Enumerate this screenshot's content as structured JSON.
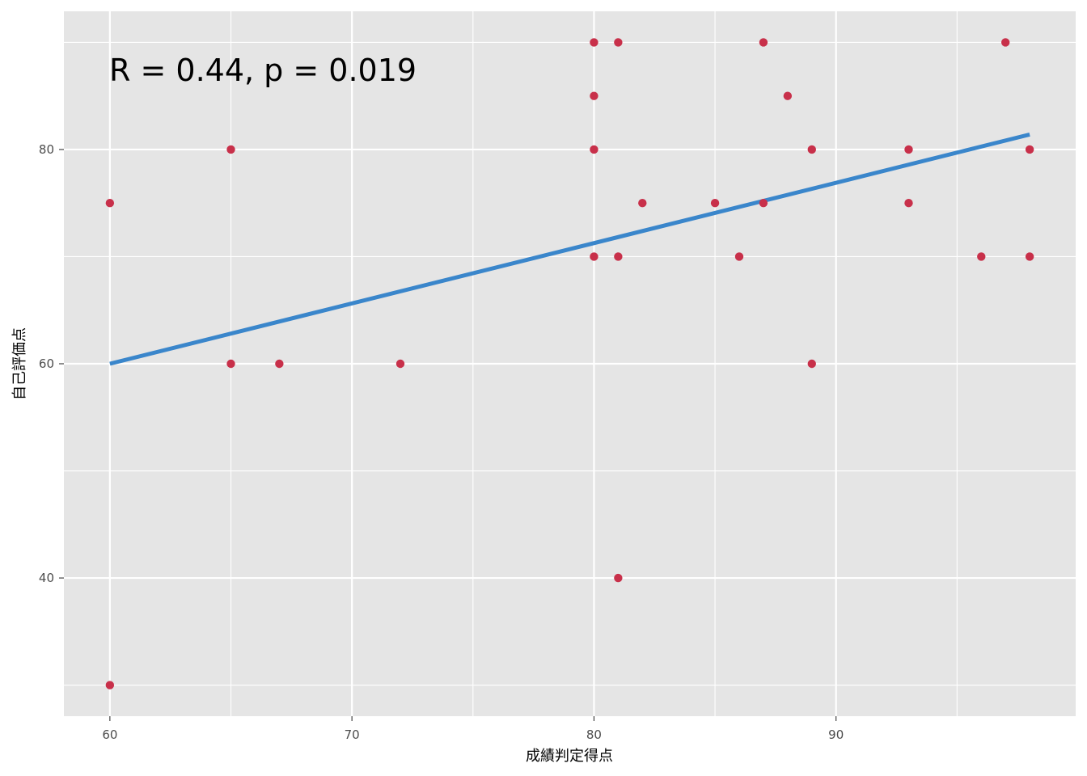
{
  "chart_data": {
    "type": "scatter",
    "title": "",
    "xlabel": "成績判定得点",
    "ylabel": "自己評価点",
    "xlim": [
      58.1,
      99.9
    ],
    "ylim": [
      27.1,
      92.9
    ],
    "x_major_ticks": [
      60,
      70,
      80,
      90
    ],
    "x_minor_ticks": [
      65,
      75,
      85,
      95
    ],
    "y_major_ticks": [
      40,
      60,
      80
    ],
    "y_minor_ticks": [
      30,
      50,
      70,
      90
    ],
    "x_tick_labels": [
      "60",
      "70",
      "80",
      "90"
    ],
    "y_tick_labels": [
      "40",
      "60",
      "80"
    ],
    "grid": true,
    "legend": "none",
    "colors": {
      "panel": "#e5e5e5",
      "grid": "#ffffff",
      "point": "#c8304a",
      "fit_line": "#3a86cb",
      "axis_text": "#4d4d4d",
      "ticks": "#333333"
    },
    "annotation": "R = 0.44, p = 0.019",
    "points": [
      {
        "x": 60,
        "y": 75
      },
      {
        "x": 60,
        "y": 30
      },
      {
        "x": 65,
        "y": 80
      },
      {
        "x": 65,
        "y": 60
      },
      {
        "x": 67,
        "y": 60
      },
      {
        "x": 72,
        "y": 60
      },
      {
        "x": 80,
        "y": 90
      },
      {
        "x": 80,
        "y": 85
      },
      {
        "x": 80,
        "y": 80
      },
      {
        "x": 80,
        "y": 70
      },
      {
        "x": 81,
        "y": 90
      },
      {
        "x": 81,
        "y": 70
      },
      {
        "x": 81,
        "y": 40
      },
      {
        "x": 82,
        "y": 75
      },
      {
        "x": 85,
        "y": 75
      },
      {
        "x": 86,
        "y": 70
      },
      {
        "x": 87,
        "y": 90
      },
      {
        "x": 87,
        "y": 75
      },
      {
        "x": 88,
        "y": 85
      },
      {
        "x": 89,
        "y": 80
      },
      {
        "x": 89,
        "y": 60
      },
      {
        "x": 93,
        "y": 80
      },
      {
        "x": 93,
        "y": 75
      },
      {
        "x": 96,
        "y": 70
      },
      {
        "x": 97,
        "y": 90
      },
      {
        "x": 98,
        "y": 80
      },
      {
        "x": 98,
        "y": 70
      }
    ],
    "fit_line": {
      "x": [
        60,
        98
      ],
      "y": [
        60,
        81.4
      ]
    }
  }
}
